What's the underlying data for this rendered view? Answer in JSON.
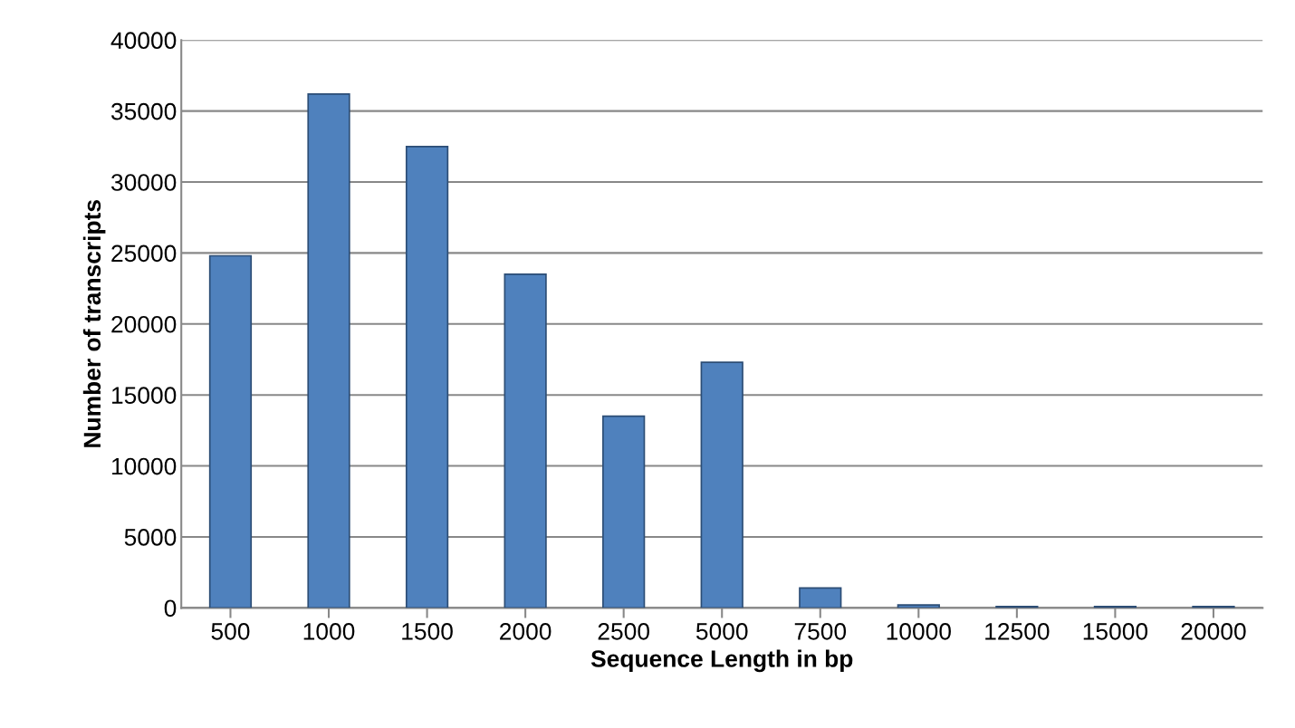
{
  "chart_data": {
    "type": "bar",
    "xlabel": "Sequence Length in bp",
    "ylabel": "Number of transcripts",
    "categories": [
      "500",
      "1000",
      "1500",
      "2000",
      "2500",
      "5000",
      "7500",
      "10000",
      "12500",
      "15000",
      "20000"
    ],
    "values": [
      24800,
      36200,
      32500,
      23500,
      13500,
      17300,
      1400,
      200,
      100,
      100,
      100
    ],
    "color": "#4f81bd",
    "ylim": [
      0,
      40000
    ],
    "yticks": [
      0,
      5000,
      10000,
      15000,
      20000,
      25000,
      30000,
      35000,
      40000
    ],
    "grid": "y"
  }
}
